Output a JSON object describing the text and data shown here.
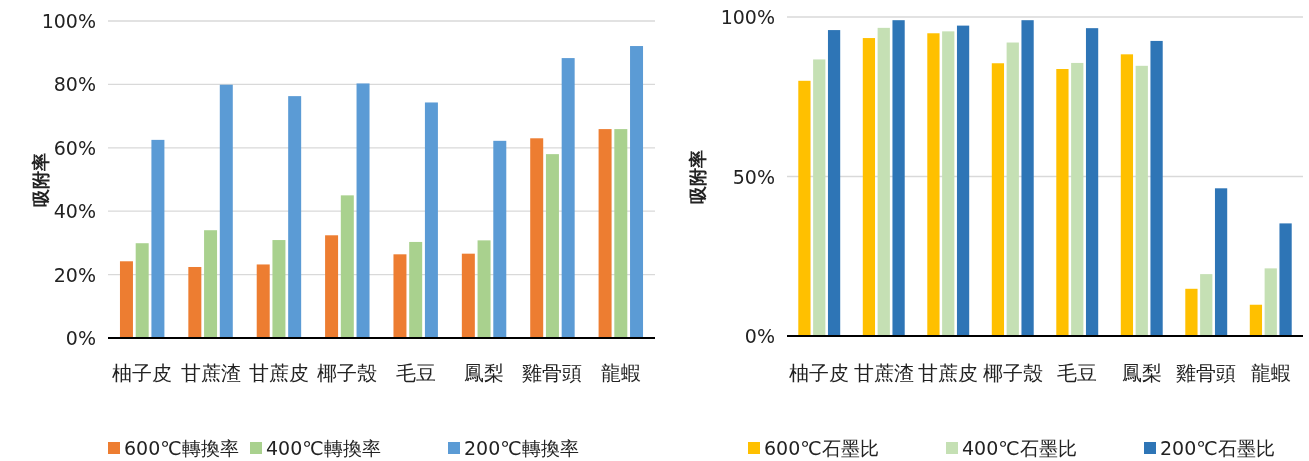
{
  "chart_data": [
    {
      "type": "bar",
      "ylabel": "吸附率",
      "categories": [
        "柚子皮",
        "甘蔗渣",
        "甘蔗皮",
        "椰子殼",
        "毛豆",
        "鳳梨",
        "雞骨頭",
        "龍蝦"
      ],
      "ylim": [
        0,
        100
      ],
      "yticks": [
        {
          "value": 0,
          "label": "0%"
        },
        {
          "value": 20,
          "label": "20%"
        },
        {
          "value": 40,
          "label": "40%"
        },
        {
          "value": 60,
          "label": "60%"
        },
        {
          "value": 80,
          "label": "80%"
        },
        {
          "value": 100,
          "label": "100%"
        }
      ],
      "grid": "y",
      "legend": "bottom",
      "series": [
        {
          "name": "600℃轉換率",
          "color": "#ed7d31",
          "values": [
            24.2,
            22.4,
            23.2,
            32.4,
            26.4,
            26.6,
            63.0,
            65.9
          ]
        },
        {
          "name": "400℃轉換率",
          "color": "#a9d18e",
          "values": [
            29.9,
            34.0,
            30.9,
            45.0,
            30.3,
            30.8,
            58.0,
            65.9
          ]
        },
        {
          "name": "200℃轉換率",
          "color": "#5b9bd5",
          "values": [
            62.5,
            79.9,
            76.3,
            80.3,
            74.3,
            62.2,
            88.3,
            92.1
          ]
        }
      ]
    },
    {
      "type": "bar",
      "ylabel": "吸附率",
      "categories": [
        "柚子皮",
        "甘蔗渣",
        "甘蔗皮",
        "椰子殼",
        "毛豆",
        "鳳梨",
        "雞骨頭",
        "龍蝦"
      ],
      "ylim": [
        0,
        100
      ],
      "yticks": [
        {
          "value": 0,
          "label": "0%"
        },
        {
          "value": 50,
          "label": "50%"
        },
        {
          "value": 100,
          "label": "100%"
        }
      ],
      "grid": "y",
      "legend": "bottom",
      "series": [
        {
          "name": "600℃石墨比",
          "color": "#ffc000",
          "values": [
            80.0,
            93.4,
            94.9,
            85.5,
            83.7,
            88.3,
            14.8,
            9.8
          ]
        },
        {
          "name": "400℃石墨比",
          "color": "#c5e0b4",
          "values": [
            86.7,
            96.6,
            95.5,
            92.0,
            85.6,
            84.7,
            19.4,
            21.2
          ]
        },
        {
          "name": "200℃石墨比",
          "color": "#2e75b6",
          "values": [
            95.9,
            99.0,
            97.3,
            99.0,
            96.5,
            92.5,
            46.3,
            35.3
          ]
        }
      ]
    }
  ]
}
